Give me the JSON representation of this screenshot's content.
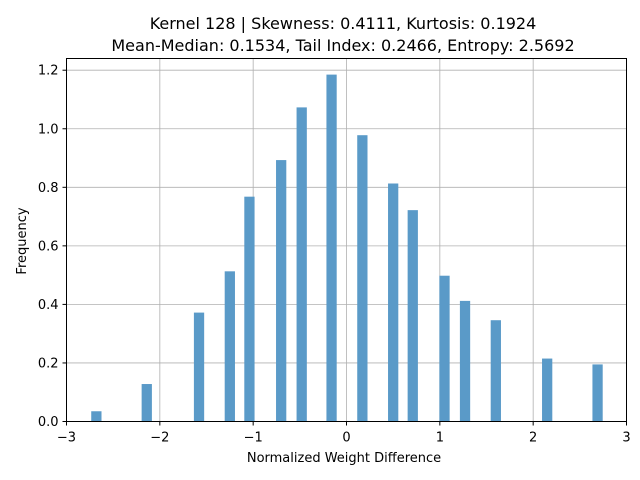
{
  "chart_data": {
    "type": "bar",
    "title_lines": [
      "Kernel 128 | Skewness: 0.4111, Kurtosis: 0.1924",
      "Mean-Median: 0.1534, Tail Index: 0.2466, Entropy: 2.5692"
    ],
    "xlabel": "Normalized Weight Difference",
    "ylabel": "Frequency",
    "xlim": [
      -3.0,
      3.0
    ],
    "ylim": [
      0,
      1.24
    ],
    "xticks": [
      "−3",
      "−2",
      "−1",
      "0",
      "1",
      "2",
      "3"
    ],
    "xtick_values": [
      -3,
      -2,
      -1,
      0,
      1,
      2,
      3
    ],
    "yticks": [
      "0.0",
      "0.2",
      "0.4",
      "0.6",
      "0.8",
      "1.0",
      "1.2"
    ],
    "ytick_values": [
      0,
      0.2,
      0.4,
      0.6,
      0.8,
      1.0,
      1.2
    ],
    "bar_width": 0.11,
    "grid": true,
    "color": "#5a9ac8",
    "bars": [
      {
        "x": -2.68,
        "value": 0.035
      },
      {
        "x": -2.14,
        "value": 0.128
      },
      {
        "x": -1.58,
        "value": 0.372
      },
      {
        "x": -1.25,
        "value": 0.513
      },
      {
        "x": -1.04,
        "value": 0.768
      },
      {
        "x": -0.7,
        "value": 0.893
      },
      {
        "x": -0.48,
        "value": 1.073
      },
      {
        "x": -0.16,
        "value": 1.185
      },
      {
        "x": 0.17,
        "value": 0.978
      },
      {
        "x": 0.5,
        "value": 0.813
      },
      {
        "x": 0.71,
        "value": 0.722
      },
      {
        "x": 1.05,
        "value": 0.498
      },
      {
        "x": 1.27,
        "value": 0.412
      },
      {
        "x": 1.6,
        "value": 0.346
      },
      {
        "x": 2.15,
        "value": 0.215
      },
      {
        "x": 2.69,
        "value": 0.195
      }
    ]
  }
}
